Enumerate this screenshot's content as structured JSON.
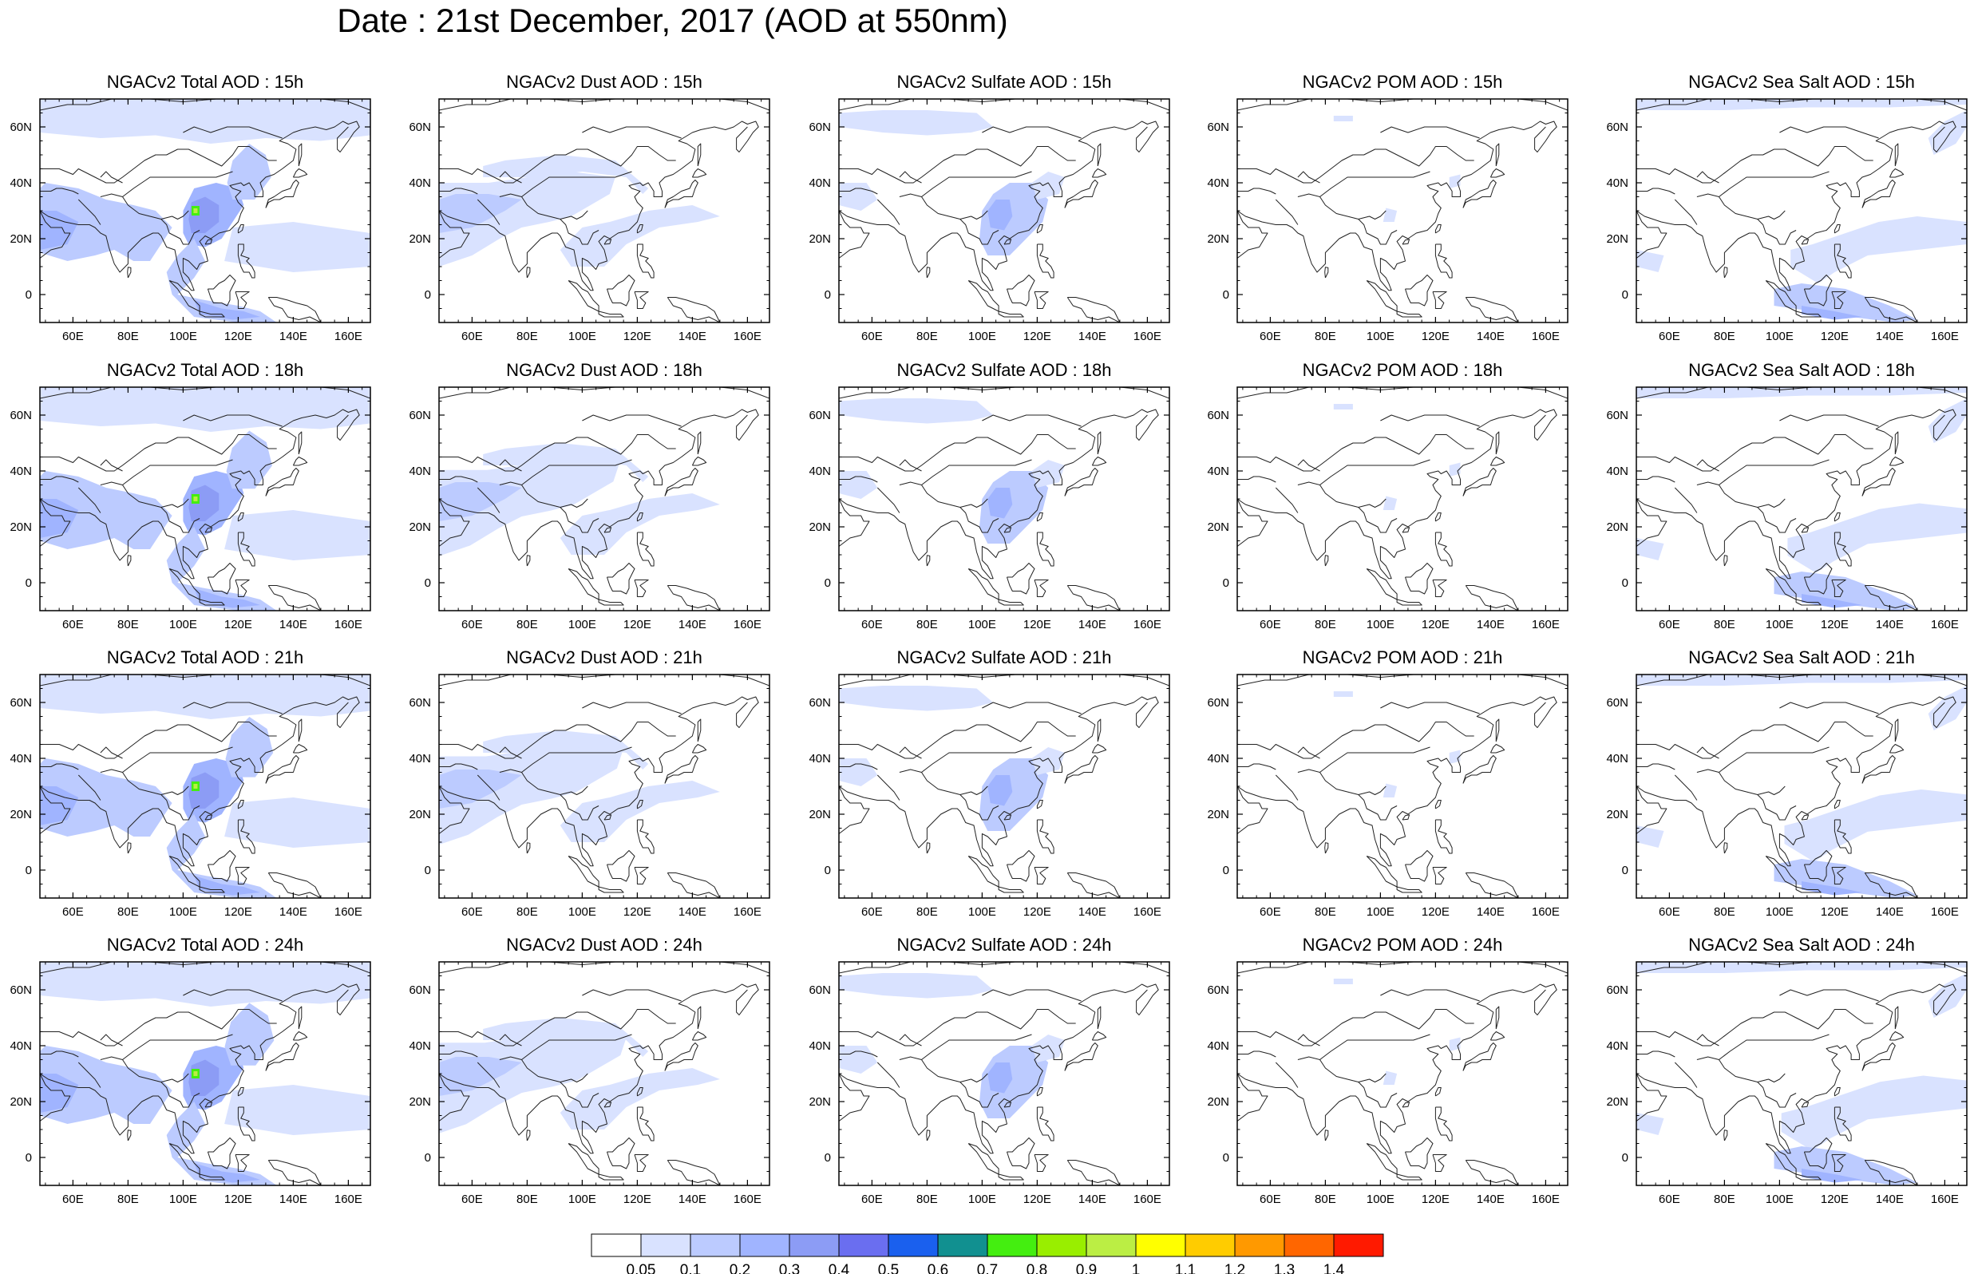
{
  "title": "Date : 21st December, 2017 (AOD at 550nm)",
  "chart_data": {
    "type": "heatmap",
    "title": "Date : 21st December, 2017 (AOD at 550nm)",
    "lon_range": [
      48,
      168
    ],
    "lat_range": [
      -10,
      70
    ],
    "x_ticks": [
      "60E",
      "80E",
      "100E",
      "120E",
      "140E",
      "160E"
    ],
    "y_ticks": [
      "60N",
      "40N",
      "20N",
      "0"
    ],
    "x_tick_values": [
      60,
      80,
      100,
      120,
      140,
      160
    ],
    "y_tick_values": [
      60,
      40,
      20,
      0
    ],
    "colorbar": {
      "levels": [
        "0.05",
        "0.1",
        "0.2",
        "0.3",
        "0.4",
        "0.5",
        "0.6",
        "0.7",
        "0.8",
        "0.9",
        "1",
        "1.1",
        "1.2",
        "1.3",
        "1.4"
      ],
      "colors": [
        "#ffffff",
        "#d9e2ff",
        "#bccbff",
        "#a0b4ff",
        "#8c9cf5",
        "#6a6ef0",
        "#1a60ee",
        "#119090",
        "#44ee10",
        "#99ee00",
        "#bbee44",
        "#ffff00",
        "#ffcc00",
        "#ff9900",
        "#ff6600",
        "#ff1a00"
      ]
    },
    "panels": [
      {
        "title": "NGACv2 Total AOD : 15h",
        "species": "total",
        "hour": 15
      },
      {
        "title": "NGACv2 Dust AOD : 15h",
        "species": "dust",
        "hour": 15
      },
      {
        "title": "NGACv2 Sulfate AOD : 15h",
        "species": "sulfate",
        "hour": 15
      },
      {
        "title": "NGACv2 POM AOD : 15h",
        "species": "pom",
        "hour": 15
      },
      {
        "title": "NGACv2 Sea Salt AOD : 15h",
        "species": "seasalt",
        "hour": 15
      },
      {
        "title": "NGACv2 Total AOD : 18h",
        "species": "total",
        "hour": 18
      },
      {
        "title": "NGACv2 Dust AOD : 18h",
        "species": "dust",
        "hour": 18
      },
      {
        "title": "NGACv2 Sulfate AOD : 18h",
        "species": "sulfate",
        "hour": 18
      },
      {
        "title": "NGACv2 POM AOD : 18h",
        "species": "pom",
        "hour": 18
      },
      {
        "title": "NGACv2 Sea Salt AOD : 18h",
        "species": "seasalt",
        "hour": 18
      },
      {
        "title": "NGACv2 Total AOD : 21h",
        "species": "total",
        "hour": 21
      },
      {
        "title": "NGACv2 Dust AOD : 21h",
        "species": "dust",
        "hour": 21
      },
      {
        "title": "NGACv2 Sulfate AOD : 21h",
        "species": "sulfate",
        "hour": 21
      },
      {
        "title": "NGACv2 POM AOD : 21h",
        "species": "pom",
        "hour": 21
      },
      {
        "title": "NGACv2 Sea Salt AOD : 21h",
        "species": "seasalt",
        "hour": 21
      },
      {
        "title": "NGACv2 Total AOD : 24h",
        "species": "total",
        "hour": 24
      },
      {
        "title": "NGACv2 Dust AOD : 24h",
        "species": "dust",
        "hour": 24
      },
      {
        "title": "NGACv2 Sulfate AOD : 24h",
        "species": "sulfate",
        "hour": 24
      },
      {
        "title": "NGACv2 POM AOD : 24h",
        "species": "pom",
        "hour": 24
      },
      {
        "title": "NGACv2 Sea Salt  AOD : 24h",
        "species": "seasalt",
        "hour": 24
      }
    ]
  }
}
